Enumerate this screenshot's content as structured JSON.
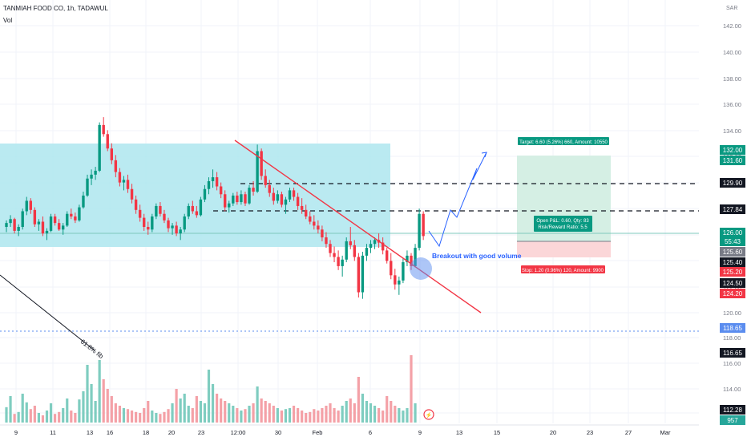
{
  "chart_data": {
    "type": "candlestick",
    "title": "TANMIAH FOOD CO, 1h, TADAWUL",
    "volume_label": "Vol",
    "currency": "SAR",
    "ylim": [
      112,
      143
    ],
    "x_ticks": [
      "9",
      "11",
      "13",
      "16",
      "18",
      "20",
      "23",
      "12:00",
      "30",
      "Feb",
      "6",
      "9",
      "13",
      "15",
      "20",
      "23",
      "27",
      "Mar"
    ],
    "y_ticks": [
      "142.00",
      "140.00",
      "138.00",
      "136.00",
      "134.00",
      "132.00",
      "130.00",
      "128.00",
      "126.00",
      "124.00",
      "122.00",
      "120.00",
      "118.00",
      "116.00",
      "114.00"
    ],
    "candles": [
      [
        126.6,
        127.1,
        126.2,
        126.9
      ],
      [
        126.9,
        127.5,
        126.6,
        127.2
      ],
      [
        127.2,
        127.3,
        126.1,
        126.3
      ],
      [
        126.3,
        126.8,
        125.9,
        126.6
      ],
      [
        126.6,
        128.0,
        126.4,
        127.8
      ],
      [
        127.8,
        128.9,
        127.5,
        128.6
      ],
      [
        128.6,
        128.8,
        127.6,
        127.9
      ],
      [
        127.9,
        128.1,
        126.6,
        126.8
      ],
      [
        126.8,
        127.2,
        126.3,
        127.0
      ],
      [
        127.0,
        127.4,
        125.9,
        126.1
      ],
      [
        126.1,
        126.5,
        125.6,
        126.3
      ],
      [
        126.3,
        127.6,
        126.2,
        127.4
      ],
      [
        127.4,
        127.6,
        126.7,
        126.9
      ],
      [
        126.9,
        127.2,
        126.3,
        126.4
      ],
      [
        126.4,
        126.9,
        126.0,
        126.7
      ],
      [
        126.7,
        127.8,
        126.6,
        127.6
      ],
      [
        127.6,
        128.0,
        127.2,
        127.4
      ],
      [
        127.4,
        127.7,
        126.9,
        127.1
      ],
      [
        127.1,
        128.3,
        127.0,
        128.1
      ],
      [
        128.1,
        129.3,
        128.0,
        129.0
      ],
      [
        129.0,
        130.6,
        128.9,
        130.3
      ],
      [
        130.3,
        131.0,
        129.8,
        130.6
      ],
      [
        130.6,
        131.2,
        130.2,
        130.9
      ],
      [
        130.9,
        134.6,
        130.8,
        134.4
      ],
      [
        134.4,
        135.0,
        133.5,
        133.7
      ],
      [
        133.7,
        134.0,
        132.4,
        132.6
      ],
      [
        132.6,
        133.0,
        131.4,
        131.7
      ],
      [
        131.7,
        132.1,
        130.4,
        130.8
      ],
      [
        130.8,
        131.1,
        129.7,
        130.0
      ],
      [
        130.0,
        130.5,
        129.4,
        130.2
      ],
      [
        130.2,
        130.6,
        129.2,
        129.5
      ],
      [
        129.5,
        129.9,
        128.4,
        128.7
      ],
      [
        128.7,
        129.0,
        127.6,
        127.9
      ],
      [
        127.9,
        128.3,
        127.0,
        127.3
      ],
      [
        127.3,
        127.6,
        126.3,
        126.6
      ],
      [
        126.6,
        127.0,
        126.0,
        126.4
      ],
      [
        126.4,
        127.6,
        126.2,
        127.4
      ],
      [
        127.4,
        128.4,
        127.2,
        128.2
      ],
      [
        128.2,
        128.5,
        127.4,
        127.6
      ],
      [
        127.6,
        127.9,
        126.9,
        127.1
      ],
      [
        127.1,
        127.3,
        126.2,
        126.5
      ],
      [
        126.5,
        126.9,
        126.0,
        126.7
      ],
      [
        126.7,
        127.0,
        125.9,
        126.1
      ],
      [
        126.1,
        126.6,
        125.6,
        126.4
      ],
      [
        126.4,
        127.6,
        126.2,
        127.4
      ],
      [
        127.4,
        128.4,
        127.2,
        128.2
      ],
      [
        128.2,
        128.6,
        127.6,
        127.8
      ],
      [
        127.8,
        128.2,
        127.3,
        127.5
      ],
      [
        127.5,
        128.9,
        127.4,
        128.7
      ],
      [
        128.7,
        129.8,
        128.5,
        129.5
      ],
      [
        129.5,
        130.4,
        129.1,
        130.1
      ],
      [
        130.1,
        131.0,
        129.6,
        130.4
      ],
      [
        130.4,
        130.8,
        129.4,
        129.7
      ],
      [
        129.7,
        130.0,
        128.8,
        129.1
      ],
      [
        129.1,
        129.4,
        127.8,
        128.1
      ],
      [
        128.1,
        128.6,
        127.7,
        128.4
      ],
      [
        128.4,
        129.2,
        128.2,
        129.0
      ],
      [
        129.0,
        129.3,
        128.3,
        128.5
      ],
      [
        128.5,
        129.4,
        128.3,
        129.1
      ],
      [
        129.1,
        129.3,
        128.2,
        128.4
      ],
      [
        128.4,
        129.8,
        128.3,
        129.6
      ],
      [
        129.6,
        130.1,
        129.0,
        129.3
      ],
      [
        129.3,
        132.9,
        129.2,
        132.4
      ],
      [
        132.4,
        132.6,
        130.2,
        130.5
      ],
      [
        130.5,
        131.0,
        129.6,
        129.8
      ],
      [
        129.8,
        130.2,
        128.9,
        129.2
      ],
      [
        129.2,
        129.6,
        128.3,
        128.6
      ],
      [
        128.6,
        129.4,
        128.4,
        129.1
      ],
      [
        129.1,
        129.3,
        128.1,
        128.3
      ],
      [
        128.3,
        128.9,
        127.6,
        128.7
      ],
      [
        128.7,
        129.6,
        128.5,
        129.4
      ],
      [
        129.4,
        129.6,
        128.6,
        128.9
      ],
      [
        128.9,
        129.2,
        127.9,
        128.2
      ],
      [
        128.2,
        128.8,
        127.6,
        127.9
      ],
      [
        127.9,
        128.3,
        127.2,
        127.4
      ],
      [
        127.4,
        127.8,
        126.8,
        127.0
      ],
      [
        127.0,
        127.5,
        126.4,
        126.7
      ],
      [
        126.7,
        127.1,
        126.1,
        126.4
      ],
      [
        126.4,
        126.7,
        125.5,
        125.8
      ],
      [
        125.8,
        126.2,
        125.0,
        125.3
      ],
      [
        125.3,
        125.6,
        124.3,
        124.6
      ],
      [
        124.6,
        125.1,
        123.9,
        124.3
      ],
      [
        124.3,
        124.8,
        123.3,
        123.6
      ],
      [
        123.6,
        124.4,
        122.8,
        124.1
      ],
      [
        124.1,
        125.8,
        123.9,
        125.5
      ],
      [
        125.5,
        126.6,
        124.9,
        125.2
      ],
      [
        125.2,
        125.6,
        124.0,
        124.3
      ],
      [
        124.3,
        124.6,
        121.2,
        121.6
      ],
      [
        121.6,
        124.7,
        121.1,
        124.4
      ],
      [
        124.4,
        125.3,
        124.0,
        125.0
      ],
      [
        125.0,
        125.6,
        124.6,
        125.3
      ],
      [
        125.3,
        125.8,
        124.9,
        125.6
      ],
      [
        125.6,
        126.1,
        125.0,
        125.4
      ],
      [
        125.4,
        125.8,
        124.5,
        124.8
      ],
      [
        124.8,
        125.0,
        123.8,
        124.0
      ],
      [
        124.0,
        124.6,
        122.6,
        122.9
      ],
      [
        122.9,
        123.4,
        121.8,
        122.2
      ],
      [
        122.2,
        122.8,
        121.4,
        122.5
      ],
      [
        122.5,
        124.2,
        122.3,
        123.9
      ],
      [
        123.9,
        124.8,
        123.6,
        124.4
      ],
      [
        124.4,
        124.6,
        123.3,
        123.6
      ],
      [
        123.6,
        125.3,
        123.5,
        125.0
      ],
      [
        125.0,
        128.0,
        124.8,
        127.6
      ],
      [
        127.6,
        127.8,
        125.6,
        125.9
      ]
    ],
    "volumes": [
      32,
      55,
      18,
      22,
      60,
      42,
      28,
      35,
      20,
      15,
      25,
      40,
      18,
      22,
      30,
      50,
      25,
      20,
      48,
      65,
      120,
      80,
      45,
      130,
      90,
      70,
      55,
      40,
      35,
      30,
      28,
      25,
      22,
      20,
      30,
      45,
      25,
      20,
      18,
      22,
      28,
      40,
      70,
      50,
      60,
      35,
      30,
      55,
      45,
      40,
      110,
      80,
      60,
      50,
      45,
      40,
      35,
      30,
      25,
      28,
      35,
      40,
      75,
      50,
      45,
      40,
      35,
      30,
      25,
      28,
      30,
      35,
      30,
      25,
      20,
      22,
      28,
      25,
      30,
      35,
      40,
      30,
      25,
      35,
      45,
      50,
      40,
      95,
      60,
      45,
      40,
      35,
      30,
      25,
      55,
      45,
      35,
      30,
      25,
      30,
      140,
      40
    ],
    "levels": [
      {
        "price": 127.84,
        "style": "dashed"
      },
      {
        "price": 129.9,
        "style": "dashed"
      },
      {
        "price": 118.65,
        "style": "dotted-blue"
      }
    ],
    "price_labels": [
      {
        "text": "132.00",
        "color": "#089981"
      },
      {
        "text": "131.60",
        "color": "#089981"
      },
      {
        "text": "129.90",
        "color": "#131722"
      },
      {
        "text": "127.84",
        "color": "#131722"
      },
      {
        "text": "126.00",
        "color": "#089981"
      },
      {
        "text": "55:43",
        "color": "#089981"
      },
      {
        "text": "125.60",
        "color": "#787b86"
      },
      {
        "text": "125.40",
        "color": "#131722"
      },
      {
        "text": "125.20",
        "color": "#f23645"
      },
      {
        "text": "124.50",
        "color": "#131722"
      },
      {
        "text": "124.20",
        "color": "#f23645"
      },
      {
        "text": "118.65",
        "color": "#5b8def"
      },
      {
        "text": "116.65",
        "color": "#131722"
      },
      {
        "text": "112.28",
        "color": "#131722"
      },
      {
        "text": "957",
        "color": "#26a69a"
      }
    ],
    "annotations": {
      "fib_label": "61.8% fib",
      "breakout_text": "Breakout with good volume",
      "target_text": "Target: 6.60 (5.26%) 660, Amount: 10550",
      "stop_text": "Stop: 1.20 (0.96%) 120, Amount: 9900",
      "pnl_line1": "Open P&L: 0.60, Qty: 83",
      "pnl_line2": "Risk/Reward Ratio: 5.5"
    }
  }
}
